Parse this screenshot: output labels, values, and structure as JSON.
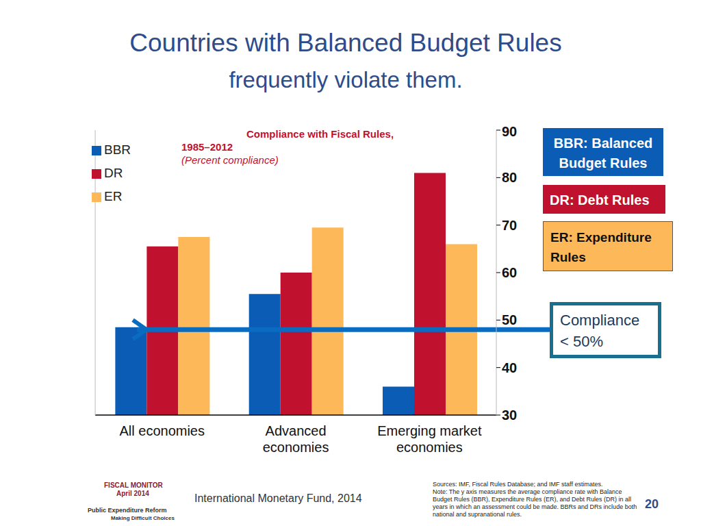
{
  "slide": {
    "title": "Countries with Balanced Budget Rules",
    "subtitle": "frequently violate them.",
    "footer": {
      "publication": "FISCAL MONITOR",
      "date": "April 2014",
      "book_title": "Public Expenditure Reform",
      "book_subtitle": "Making Difficult Choices",
      "credit": "International Monetary Fund, 2014",
      "sources": "Sources: IMF, Fiscal Rules Database; and IMF staff estimates.",
      "note": "Note: The y axis measures the average compliance rate with Balance Budget Rules (BBR), Expenditure Rules (ER), and Debt Rules (DR) in all years in which an assessment could be made. BBRs and DRs include both national and supranational rules.",
      "page": "20"
    }
  },
  "chart_data": {
    "type": "bar",
    "title": "Compliance with Fiscal Rules,",
    "subtitle": "1985–2012",
    "y_label": "(Percent compliance)",
    "categories": [
      "All economies",
      "Advanced economies",
      "Emerging market economies"
    ],
    "series": [
      {
        "name": "BBR",
        "color": "#0a5cb4",
        "values": [
          48.5,
          55.5,
          36
        ]
      },
      {
        "name": "DR",
        "color": "#c0122e",
        "values": [
          65.5,
          60,
          81
        ]
      },
      {
        "name": "ER",
        "color": "#fdb859",
        "values": [
          67.5,
          69.5,
          66
        ]
      }
    ],
    "ylim": [
      30,
      90
    ],
    "yticks": [
      30,
      40,
      50,
      60,
      70,
      80,
      90
    ],
    "grid": false,
    "legend": "top-left",
    "annotations": [
      "BBR: Balanced Budget Rules",
      "DR: Debt Rules",
      "ER: Expenditure Rules"
    ],
    "reference_line": {
      "value": 48,
      "label": "Compliance < 50%"
    }
  }
}
